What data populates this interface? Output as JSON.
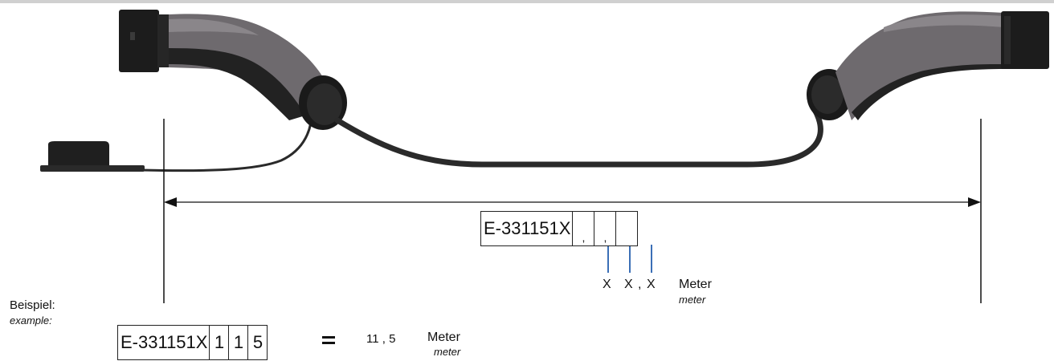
{
  "diagram": {
    "code_prefix": "E-331151X",
    "length_placeholder": {
      "digits": [
        "X",
        "X",
        "X"
      ],
      "comma": ",",
      "unit_de": "Meter",
      "unit_en": "meter"
    },
    "example": {
      "label_de": "Beispiel:",
      "label_en": "example:",
      "code_prefix": "E-331151X",
      "digits": [
        "1",
        "1",
        "5"
      ],
      "equals": "=",
      "result": "11 , 5",
      "unit_de": "Meter",
      "unit_en": "meter"
    },
    "colors": {
      "cable": "#2a2a2a",
      "connector_grey": "#6e6a6e",
      "indicator_line": "#3b6fb6",
      "dimension_line": "#111111"
    }
  }
}
